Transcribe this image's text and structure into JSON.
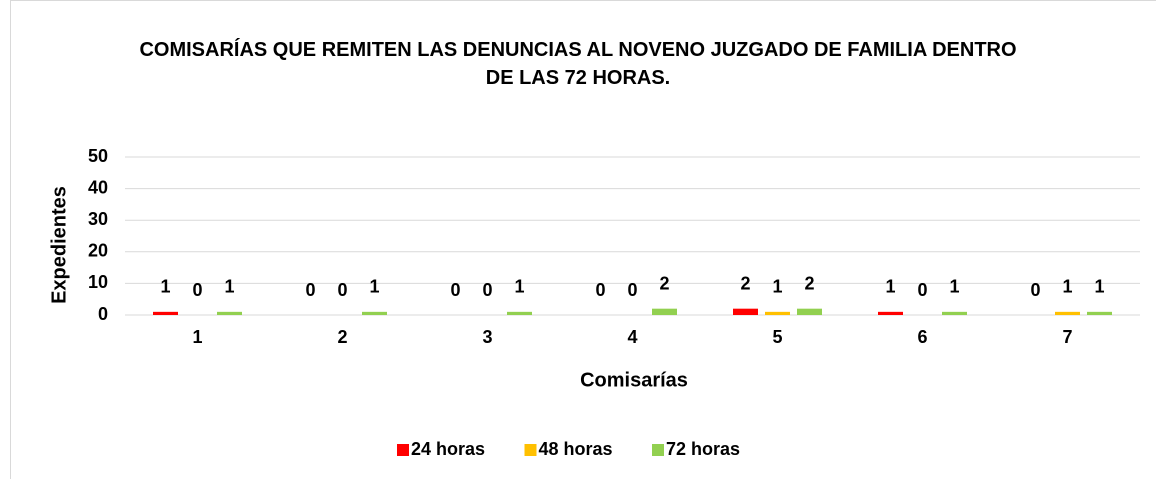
{
  "chart_data": {
    "type": "bar",
    "title": "COMISARÍAS QUE REMITEN LAS DENUNCIAS AL NOVENO JUZGADO DE FAMILIA DENTRO DE LAS 72 HORAS.",
    "x_label": "Comisarías",
    "y_label": "Expedientes",
    "categories": [
      "1",
      "2",
      "3",
      "4",
      "5",
      "6",
      "7"
    ],
    "series": [
      {
        "name": "24 horas",
        "color": "#ff0000",
        "values": [
          1,
          0,
          0,
          0,
          2,
          1,
          0
        ]
      },
      {
        "name": "48 horas",
        "color": "#ffc000",
        "values": [
          0,
          0,
          0,
          0,
          1,
          0,
          1
        ]
      },
      {
        "name": "72 horas",
        "color": "#92d050",
        "values": [
          1,
          1,
          1,
          2,
          2,
          1,
          1
        ]
      }
    ],
    "ylim": [
      0,
      50
    ],
    "yticks": [
      0,
      10,
      20,
      30,
      40,
      50
    ],
    "grid": true,
    "legend": "bottom"
  }
}
